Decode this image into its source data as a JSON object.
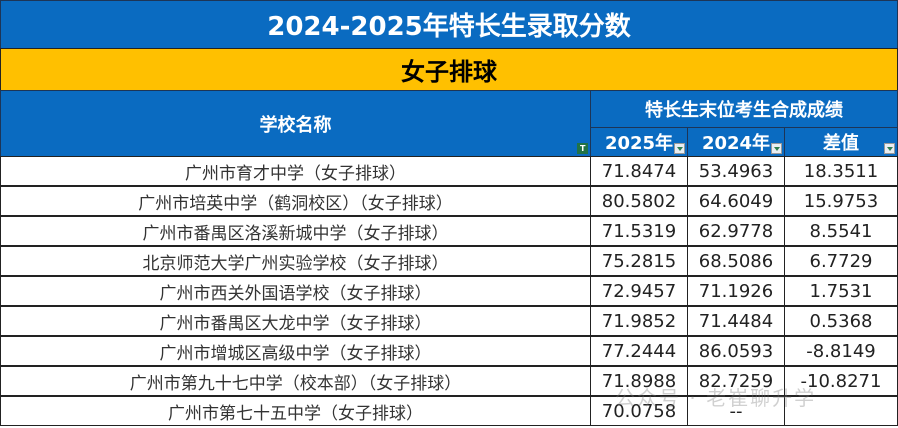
{
  "title": "2024-2025年特长生录取分数",
  "category": "女子排球",
  "header": {
    "school_col": "学校名称",
    "score_group": "特长生末位考生合成成绩",
    "col_2025": "2025年",
    "col_2024": "2024年",
    "col_diff": "差值"
  },
  "rows": [
    {
      "school": "广州市育才中学（女子排球）",
      "y2025": "71.8474",
      "y2024": "53.4963",
      "diff": "18.3511"
    },
    {
      "school": "广州市培英中学（鹤洞校区）（女子排球）",
      "y2025": "80.5802",
      "y2024": "64.6049",
      "diff": "15.9753"
    },
    {
      "school": "广州市番禺区洛溪新城中学（女子排球）",
      "y2025": "71.5319",
      "y2024": "62.9778",
      "diff": "8.5541"
    },
    {
      "school": "北京师范大学广州实验学校（女子排球）",
      "y2025": "75.2815",
      "y2024": "68.5086",
      "diff": "6.7729"
    },
    {
      "school": "广州市西关外国语学校（女子排球）",
      "y2025": "72.9457",
      "y2024": "71.1926",
      "diff": "1.7531"
    },
    {
      "school": "广州市番禺区大龙中学（女子排球）",
      "y2025": "71.9852",
      "y2024": "71.4484",
      "diff": "0.5368"
    },
    {
      "school": "广州市增城区高级中学（女子排球）",
      "y2025": "77.2444",
      "y2024": "86.0593",
      "diff": "-8.8149"
    },
    {
      "school": "广州市第九十七中学（校本部）（女子排球）",
      "y2025": "71.8988",
      "y2024": "82.7259",
      "diff": "-10.8271"
    },
    {
      "school": "广州市第七十五中学（女子排球）",
      "y2025": "70.0758",
      "y2024": "--",
      "diff": ""
    }
  ],
  "watermark": "公众号 · 老崔聊升学",
  "colors": {
    "header_blue": "#0a6bc1",
    "category_yellow": "#ffc000",
    "filter_green": "#217346"
  }
}
